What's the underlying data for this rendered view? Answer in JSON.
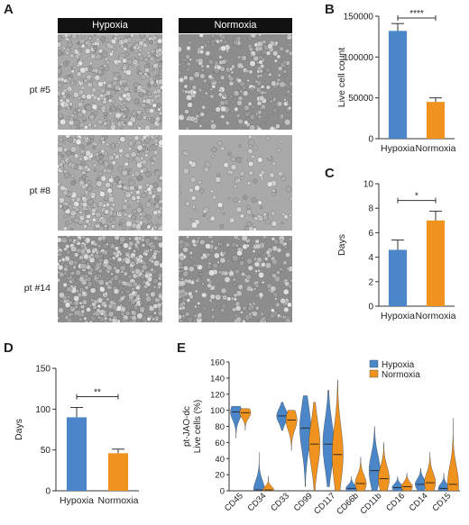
{
  "panel_letters": {
    "a": "A",
    "b": "B",
    "c": "C",
    "d": "D",
    "e": "E"
  },
  "micrographs": {
    "columns": [
      "Hypoxia",
      "Normoxia"
    ],
    "rows": [
      "pt #5",
      "pt #8",
      "pt #14"
    ]
  },
  "colors": {
    "hypoxia": "#4a86c8",
    "normoxia": "#f0921e"
  },
  "chart_data": [
    {
      "id": "B",
      "type": "bar",
      "categories": [
        "Hypoxia",
        "Normoxia"
      ],
      "values": [
        132000,
        45000
      ],
      "errors": [
        9000,
        5000
      ],
      "ylabel": "Live cell count",
      "ylim": [
        0,
        150000
      ],
      "yticks": [
        0,
        50000,
        100000,
        150000
      ],
      "ytick_labels": [
        "0",
        "50000",
        "100000",
        "150000"
      ],
      "significance": "****"
    },
    {
      "id": "C",
      "type": "bar",
      "categories": [
        "Hypoxia",
        "Normoxia"
      ],
      "values": [
        4.6,
        7.0
      ],
      "errors": [
        0.8,
        0.75
      ],
      "ylabel": "Days",
      "ylim": [
        0,
        10
      ],
      "yticks": [
        0,
        2,
        4,
        6,
        8,
        10
      ],
      "ytick_labels": [
        "0",
        "2",
        "4",
        "6",
        "8",
        "10"
      ],
      "significance": "*"
    },
    {
      "id": "D",
      "type": "bar",
      "categories": [
        "Hypoxia",
        "Normoxia"
      ],
      "values": [
        90,
        46
      ],
      "errors": [
        12,
        5
      ],
      "ylabel": "Days",
      "ylim": [
        0,
        150
      ],
      "yticks": [
        0,
        50,
        100,
        150
      ],
      "ytick_labels": [
        "0",
        "50",
        "100",
        "150"
      ],
      "significance": "**"
    },
    {
      "id": "E",
      "type": "violin",
      "categories": [
        "CD45",
        "CD34",
        "CD33",
        "CD99",
        "CD117",
        "CD66b",
        "CD11b",
        "CD16",
        "CD14",
        "CD15"
      ],
      "ylabel_lines": [
        "pt-JAO-dc",
        "Live cells (%)"
      ],
      "ylim": [
        0,
        160
      ],
      "yticks": [
        0,
        20,
        40,
        60,
        80,
        100,
        120,
        140,
        160
      ],
      "ytick_labels": [
        "0",
        "20",
        "40",
        "60",
        "80",
        "100",
        "120",
        "140",
        "160"
      ],
      "legend": [
        "Hypoxia",
        "Normoxia"
      ],
      "legend_position": "top-right",
      "series": [
        {
          "name": "Hypoxia",
          "min": [
            65,
            0,
            75,
            5,
            5,
            0,
            0,
            0,
            0,
            0
          ],
          "max": [
            105,
            48,
            110,
            118,
            125,
            18,
            80,
            18,
            28,
            22
          ],
          "median": [
            98,
            1,
            93,
            78,
            58,
            3,
            25,
            4,
            8,
            3
          ]
        },
        {
          "name": "Normoxia",
          "min": [
            75,
            0,
            50,
            0,
            0,
            0,
            0,
            0,
            0,
            0
          ],
          "max": [
            102,
            18,
            100,
            110,
            138,
            42,
            60,
            22,
            48,
            90
          ],
          "median": [
            97,
            1,
            88,
            58,
            45,
            9,
            15,
            5,
            10,
            8
          ]
        }
      ]
    }
  ]
}
